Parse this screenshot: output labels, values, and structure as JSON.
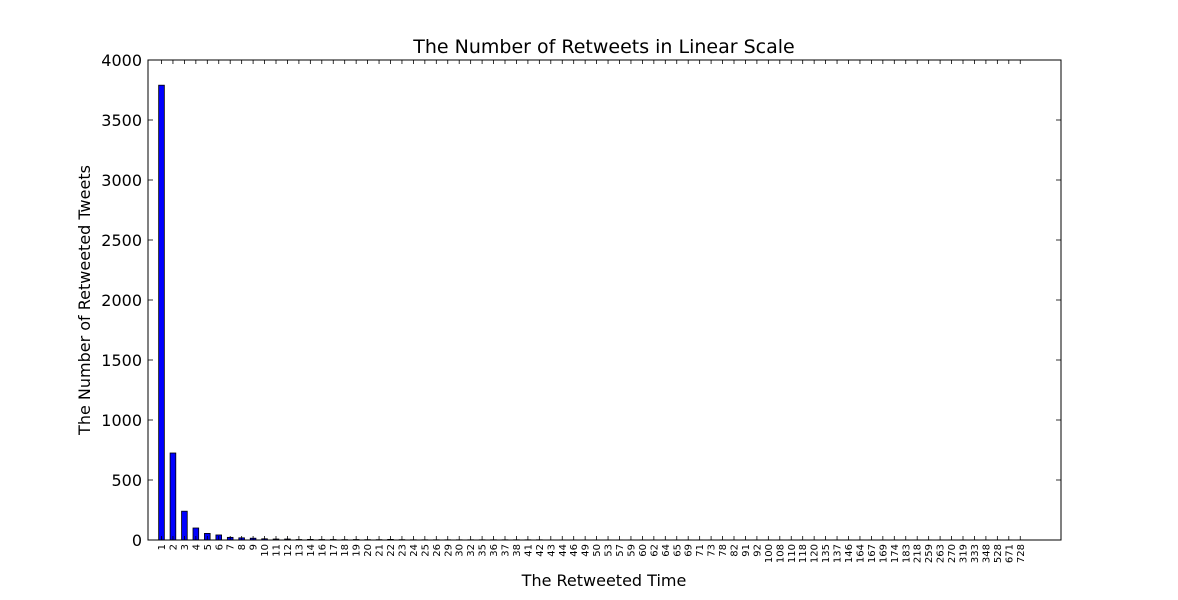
{
  "chart_data": {
    "type": "bar",
    "title": "The Number of Retweets in Linear Scale",
    "xlabel": "The Retweeted Time",
    "ylabel": "The Number of Retweeted Tweets",
    "ylim": [
      0,
      4000
    ],
    "yticks": [
      "0",
      "500",
      "1000",
      "1500",
      "2000",
      "2500",
      "3000",
      "3500",
      "4000"
    ],
    "grid": false,
    "bar_color": "#0000ff",
    "categories": [
      "1",
      "2",
      "3",
      "4",
      "5",
      "6",
      "7",
      "8",
      "9",
      "10",
      "11",
      "12",
      "13",
      "14",
      "16",
      "17",
      "18",
      "19",
      "20",
      "21",
      "22",
      "23",
      "24",
      "25",
      "26",
      "29",
      "30",
      "32",
      "35",
      "36",
      "37",
      "38",
      "41",
      "42",
      "43",
      "44",
      "46",
      "49",
      "50",
      "53",
      "57",
      "59",
      "60",
      "62",
      "64",
      "65",
      "69",
      "71",
      "73",
      "78",
      "82",
      "91",
      "92",
      "100",
      "108",
      "110",
      "118",
      "120",
      "135",
      "137",
      "146",
      "164",
      "167",
      "169",
      "174",
      "183",
      "218",
      "259",
      "263",
      "270",
      "319",
      "333",
      "348",
      "528",
      "671",
      "728"
    ],
    "values": [
      3790,
      725,
      240,
      100,
      55,
      42,
      22,
      18,
      15,
      10,
      8,
      8,
      4,
      5,
      4,
      4,
      3,
      4,
      3,
      3,
      5,
      3,
      2,
      2,
      2,
      2,
      2,
      2,
      2,
      2,
      2,
      2,
      2,
      2,
      1,
      1,
      1,
      1,
      1,
      1,
      1,
      1,
      1,
      1,
      1,
      1,
      1,
      1,
      1,
      1,
      1,
      1,
      1,
      1,
      1,
      1,
      1,
      1,
      1,
      1,
      1,
      1,
      1,
      1,
      1,
      1,
      1,
      1,
      1,
      1,
      1,
      1,
      1,
      1,
      1,
      1
    ]
  }
}
